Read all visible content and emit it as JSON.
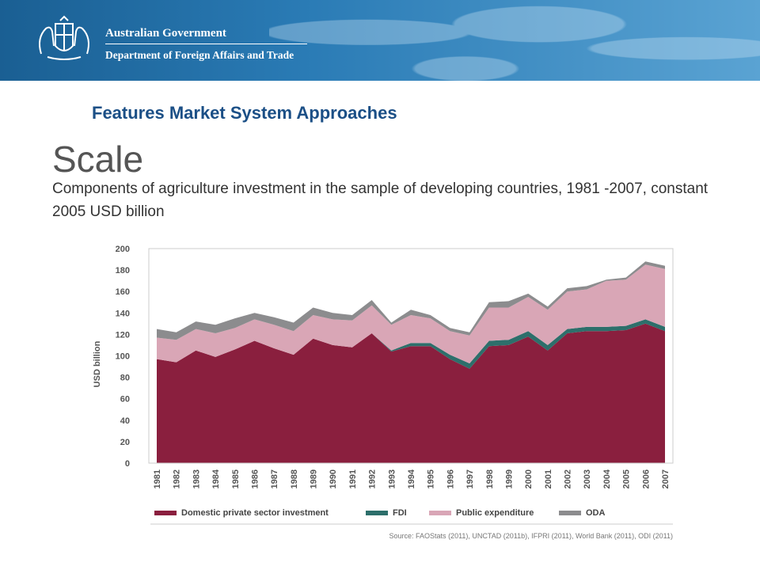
{
  "header": {
    "gov_name": "Australian Government",
    "dept_name": "Department of Foreign Affairs and Trade"
  },
  "slide": {
    "section": "Features Market System Approaches",
    "title": "Scale",
    "subtitle": "Components of agriculture investment in the sample of developing countries, 1981 -2007, constant 2005 USD billion"
  },
  "colors": {
    "banner": "#1a5f93",
    "domestic": "#8a1f3e",
    "fdi": "#2d6f6b",
    "public": "#d9a6b6",
    "oda": "#8c8c8e"
  },
  "chart_data": {
    "type": "area",
    "stacked": true,
    "ylabel": "USD billion",
    "ylim": [
      0,
      200
    ],
    "yticks": [
      0,
      20,
      40,
      60,
      80,
      100,
      120,
      140,
      160,
      180,
      200
    ],
    "grid": false,
    "legend_position": "bottom",
    "source": "Source: FAOStats (2011), UNCTAD (2011b), IFPRI (2011), World Bank (2011), ODI (2011)",
    "categories": [
      "1981",
      "1982",
      "1983",
      "1984",
      "1985",
      "1986",
      "1987",
      "1988",
      "1989",
      "1990",
      "1991",
      "1992",
      "1993",
      "1994",
      "1995",
      "1996",
      "1997",
      "1998",
      "1999",
      "2000",
      "2001",
      "2002",
      "2003",
      "2004",
      "2005",
      "2006",
      "2007"
    ],
    "series": [
      {
        "name": "Domestic private sector investment",
        "color": "#8a1f3e",
        "values": [
          97,
          94,
          105,
          99,
          106,
          114,
          107,
          101,
          116,
          110,
          108,
          121,
          104,
          109,
          109,
          97,
          88,
          109,
          110,
          118,
          105,
          121,
          123,
          123,
          124,
          130,
          123
        ]
      },
      {
        "name": "FDI",
        "color": "#2d6f6b",
        "values": [
          0,
          0,
          0,
          0,
          0,
          0,
          0,
          0,
          0,
          0,
          0,
          0,
          1,
          3,
          3,
          4,
          5,
          5,
          5,
          5,
          5,
          4,
          4,
          4,
          4,
          4,
          4
        ]
      },
      {
        "name": "Public expenditure",
        "color": "#d9a6b6",
        "values": [
          20,
          21,
          20,
          22,
          20,
          20,
          22,
          22,
          22,
          24,
          25,
          26,
          24,
          26,
          23,
          22,
          26,
          31,
          30,
          32,
          33,
          35,
          35,
          43,
          43,
          51,
          54
        ]
      },
      {
        "name": "ODA",
        "color": "#8c8c8e",
        "values": [
          8,
          7,
          7,
          8,
          9,
          6,
          7,
          8,
          7,
          6,
          5,
          5,
          2,
          5,
          3,
          3,
          3,
          5,
          6,
          3,
          3,
          3,
          3,
          1,
          2,
          3,
          3
        ]
      }
    ]
  }
}
